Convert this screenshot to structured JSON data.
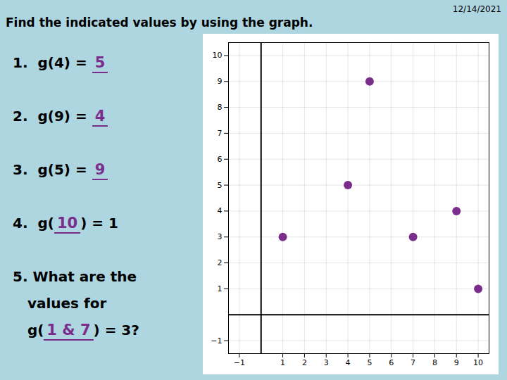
{
  "chart_data": {
    "type": "scatter",
    "title": "Find the indicated values by using the graph.",
    "x": [
      1,
      4,
      5,
      7,
      9,
      10
    ],
    "values": [
      3,
      5,
      9,
      3,
      4,
      1
    ],
    "color": "#7B2D8B",
    "xlim": [
      -1.5,
      10.5
    ],
    "ylim": [
      -1.5,
      10.5
    ],
    "xticks": [
      -1,
      1,
      2,
      3,
      4,
      5,
      6,
      7,
      8,
      9,
      10
    ],
    "yticks": [
      -1,
      1,
      2,
      3,
      4,
      5,
      6,
      7,
      8,
      9,
      10
    ],
    "grid": true,
    "annotations": [
      {
        "lines": [
          [
            {
              "text": "12/14/2021"
            }
          ]
        ]
      },
      {
        "lines": [
          [
            {
              "text": "1.  g(4) = "
            },
            {
              "text": "5",
              "color": "#7B2D8B"
            }
          ]
        ]
      },
      {
        "lines": [
          [
            {
              "text": "2.  g(9) = "
            },
            {
              "text": "4",
              "color": "#7B2D8B"
            }
          ]
        ]
      },
      {
        "lines": [
          [
            {
              "text": "3.  g(5) = "
            },
            {
              "text": "9",
              "color": "#7B2D8B"
            }
          ]
        ]
      },
      {
        "lines": [
          [
            {
              "text": "4.  g("
            },
            {
              "text": "10",
              "color": "#7B2D8B"
            },
            {
              "text": ") = 1"
            }
          ]
        ]
      },
      {
        "lines": [
          [
            {
              "text": "5. What are the"
            }
          ],
          [
            {
              "text": "   values for"
            }
          ],
          [
            {
              "text": "   g("
            },
            {
              "text": "1 & 7",
              "color": "#7B2D8B"
            },
            {
              "text": ") = 3?"
            }
          ]
        ]
      }
    ]
  }
}
